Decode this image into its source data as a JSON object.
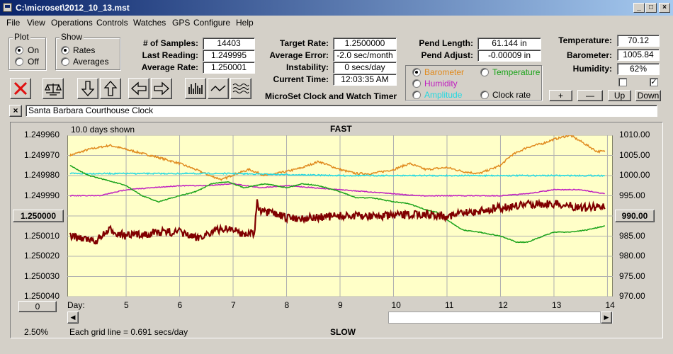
{
  "window": {
    "title": "C:\\microset\\2012_10_13.mst",
    "minimize": "_",
    "maximize": "□",
    "close": "×"
  },
  "menu": [
    "File",
    "View",
    "Operations",
    "Controls",
    "Watches",
    "GPS",
    "Configure",
    "Help"
  ],
  "plot_group": {
    "title": "Plot",
    "options": [
      "On",
      "Off"
    ],
    "selected": "On"
  },
  "show_group": {
    "title": "Show",
    "options": [
      "Rates",
      "Averages"
    ],
    "selected": "Rates"
  },
  "stats": {
    "samples_label": "# of Samples:",
    "samples": "14403",
    "last_label": "Last Reading:",
    "last": "1.249995",
    "avg_label": "Average Rate:",
    "avg": "1.250001",
    "target_label": "Target Rate:",
    "target": "1.2500000",
    "avg_error_label": "Average Error:",
    "avg_error": "-2.0 sec/month",
    "instability_label": "Instability:",
    "instability": "0 secs/day",
    "time_label": "Current Time:",
    "time": "12:03:35 AM",
    "pend_length_label": "Pend Length:",
    "pend_length": "61.144 in",
    "pend_adjust_label": "Pend Adjust:",
    "pend_adjust": "-0.00009 in",
    "temperature_label": "Temperature:",
    "temperature": "70.12",
    "barometer_label": "Barometer:",
    "barometer": "1005.84",
    "humidity_label": "Humidity:",
    "humidity": "62%"
  },
  "app_subtitle": "MicroSet Clock and Watch Timer",
  "sensor_options": [
    {
      "label": "Barometer",
      "color": "#e08a1e",
      "selected": true
    },
    {
      "label": "Temperature",
      "color": "#1aa31a",
      "selected": false
    },
    {
      "label": "Humidity",
      "color": "#c020c0",
      "selected": false
    },
    {
      "label": "Clock rate",
      "color": "#000000",
      "selected": false
    },
    {
      "label": "Amplitude",
      "color": "#20d8e0",
      "selected": false
    }
  ],
  "scale_buttons": {
    "plus": "+",
    "minus": "—",
    "up": "Up",
    "down": "Down"
  },
  "note": {
    "close": "×",
    "text": "Santa Barbara Courthouse Clock"
  },
  "plot": {
    "days_shown": "10.0 days shown",
    "top_label": "FAST",
    "bottom_label": "SLOW",
    "left_center_value": "1.250000",
    "right_center_value": "990.00",
    "offset_value": "0",
    "day_label": "Day:",
    "percent": "2.50%",
    "grid_note": "Each grid line = 0.691 secs/day"
  },
  "chart_data": {
    "type": "line",
    "x_label": "Day",
    "x_ticks": [
      5,
      6,
      7,
      8,
      9,
      10,
      11,
      12,
      13,
      14
    ],
    "xlim": [
      3.9,
      14.1
    ],
    "y_left_ticks": [
      "1.249960",
      "1.249970",
      "1.249980",
      "1.249990",
      "1.250000",
      "1.250010",
      "1.250020",
      "1.250030",
      "1.250040"
    ],
    "y_left_range": [
      1.24996,
      1.25004
    ],
    "y_left_inverted": true,
    "y_right_ticks": [
      "1010.00",
      "1005.00",
      "1000.00",
      "995.00",
      "990.00",
      "985.00",
      "980.00",
      "975.00",
      "970.00"
    ],
    "y_right_range": [
      970,
      1010
    ],
    "grid": true,
    "background": "#ffffc8",
    "series": [
      {
        "name": "Barometer",
        "color": "#e08a1e",
        "axis": "right",
        "noise": 0.25,
        "x": [
          3.95,
          4.3,
          4.7,
          5.0,
          5.3,
          5.6,
          6.0,
          6.3,
          6.6,
          6.8,
          7.0,
          7.3,
          7.6,
          8.0,
          8.3,
          8.6,
          9.0,
          9.3,
          9.6,
          10.0,
          10.3,
          10.6,
          11.0,
          11.3,
          11.6,
          12.0,
          12.2,
          12.5,
          12.8,
          13.0,
          13.3,
          13.5,
          13.8,
          13.95
        ],
        "y": [
          1005.0,
          1006.5,
          1007.5,
          1006.5,
          1005.5,
          1004.5,
          1003.0,
          1001.5,
          999.8,
          999.0,
          1000.2,
          1001.5,
          1000.0,
          1001.0,
          1002.0,
          1003.5,
          1001.5,
          1000.5,
          1000.5,
          1001.5,
          1003.0,
          1001.5,
          1002.0,
          1001.0,
          1000.5,
          1002.5,
          1005.0,
          1007.0,
          1008.0,
          1009.0,
          1010.0,
          1008.5,
          1006.0,
          1006.0
        ]
      },
      {
        "name": "Amplitude",
        "color": "#20d8e0",
        "axis": "left",
        "noise": 3e-07,
        "x": [
          3.95,
          5.0,
          7.0,
          9.0,
          11.0,
          12.0,
          13.0,
          13.95
        ],
        "y": [
          1.249979,
          1.249979,
          1.249979,
          1.24998,
          1.24998,
          1.24998,
          1.24998,
          1.24998
        ]
      },
      {
        "name": "Humidity",
        "color": "#c020c0",
        "axis": "left",
        "noise": 2e-07,
        "x": [
          3.95,
          4.5,
          5.0,
          5.5,
          6.0,
          6.5,
          7.0,
          7.5,
          8.0,
          8.5,
          9.0,
          9.5,
          10.0,
          10.5,
          11.0,
          11.5,
          12.0,
          12.5,
          13.0,
          13.5,
          13.95
        ],
        "y": [
          1.24999,
          1.24999,
          1.249987,
          1.249986,
          1.249985,
          1.249985,
          1.249984,
          1.249986,
          1.249985,
          1.249986,
          1.249987,
          1.249988,
          1.249989,
          1.24999,
          1.24999,
          1.24999,
          1.24999,
          1.249989,
          1.249987,
          1.249987,
          1.249989
        ]
      },
      {
        "name": "Temperature",
        "color": "#1aa31a",
        "axis": "left",
        "noise": 2e-07,
        "x": [
          3.95,
          4.3,
          4.6,
          5.0,
          5.3,
          5.6,
          6.0,
          6.3,
          6.6,
          6.9,
          7.2,
          7.6,
          8.0,
          8.3,
          8.6,
          9.0,
          9.3,
          9.6,
          10.0,
          10.3,
          10.6,
          10.8,
          11.0,
          11.3,
          11.6,
          12.0,
          12.3,
          12.5,
          12.8,
          13.0,
          13.3,
          13.6,
          13.95
        ],
        "y": [
          1.249975,
          1.24998,
          1.249982,
          1.249985,
          1.24999,
          1.249993,
          1.24999,
          1.249988,
          1.249984,
          1.249983,
          1.249986,
          1.249984,
          1.249986,
          1.249984,
          1.249985,
          1.249988,
          1.249991,
          1.249991,
          1.249993,
          1.249994,
          1.249997,
          1.249998,
          1.250002,
          1.250007,
          1.250008,
          1.25001,
          1.250013,
          1.250013,
          1.25001,
          1.250008,
          1.250008,
          1.250007,
          1.250005
        ]
      },
      {
        "name": "Clock rate",
        "color": "#800000",
        "axis": "left",
        "noise": 2e-06,
        "x": [
          3.95,
          4.2,
          4.4,
          4.7,
          5.0,
          5.3,
          5.6,
          6.0,
          6.3,
          6.6,
          6.9,
          7.2,
          7.4,
          7.45,
          7.5,
          7.8,
          8.0,
          8.5,
          9.0,
          9.5,
          10.0,
          10.5,
          11.0,
          11.5,
          12.0,
          12.3,
          12.6,
          13.0,
          13.3,
          13.6,
          13.95
        ],
        "y": [
          1.25001,
          1.250011,
          1.250013,
          1.250007,
          1.25001,
          1.250009,
          1.250008,
          1.250008,
          1.250011,
          1.250008,
          1.250006,
          1.250009,
          1.250008,
          1.249993,
          1.249998,
          1.249999,
          1.250001,
          1.250001,
          1.25,
          1.25,
          1.25,
          1.249999,
          1.25,
          1.249998,
          1.249996,
          1.249995,
          1.249994,
          1.249994,
          1.249995,
          1.249996,
          1.249995
        ]
      }
    ]
  }
}
